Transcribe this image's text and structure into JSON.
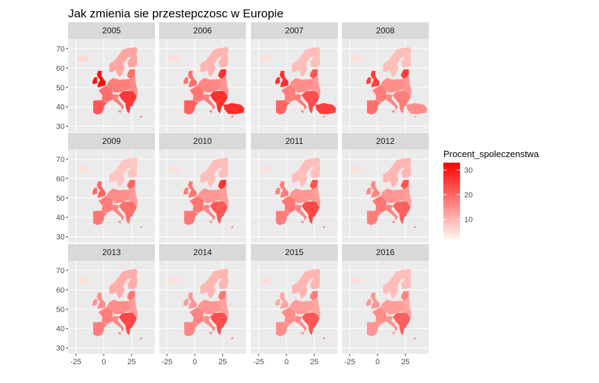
{
  "chart_data": {
    "type": "choropleth-faceted-map",
    "title": "Jak zmienia sie przestepczosc w Europie",
    "facets": [
      "2005",
      "2006",
      "2007",
      "2008",
      "2009",
      "2010",
      "2011",
      "2012",
      "2013",
      "2014",
      "2015",
      "2016"
    ],
    "x_ticks": [
      -25,
      0,
      25
    ],
    "y_ticks": [
      30,
      40,
      50,
      60,
      70
    ],
    "xlim": [
      -32,
      46
    ],
    "ylim": [
      27,
      75
    ],
    "legend": {
      "title": "Procent_spoleczenstwa",
      "ticks": [
        10,
        20,
        30
      ],
      "range": [
        2,
        33
      ],
      "low_color": "#fff5f0",
      "high_color": "#ff0000",
      "position": "right"
    },
    "grid": true,
    "colors": {
      "panel_bg": "#ebebeb",
      "grid": "#ffffff",
      "strip_bg": "#d9d9d9"
    },
    "approx_values": {
      "uk": [
        31,
        19,
        27,
        25,
        20,
        18,
        17,
        16,
        15,
        14,
        12,
        14
      ],
      "iberia": [
        22,
        21,
        20,
        19,
        18,
        18,
        17,
        17,
        17,
        16,
        15,
        14
      ],
      "france": [
        19,
        18,
        17,
        17,
        17,
        18,
        18,
        18,
        17,
        16,
        15,
        15
      ],
      "central": [
        17,
        16,
        15,
        15,
        15,
        14,
        14,
        14,
        15,
        14,
        13,
        13
      ],
      "italy": [
        17,
        17,
        17,
        16,
        16,
        16,
        16,
        16,
        16,
        15,
        15,
        14
      ],
      "balkans": [
        26,
        27,
        23,
        17,
        19,
        22,
        24,
        21,
        24,
        23,
        22,
        21
      ],
      "nordic": [
        12,
        10,
        9,
        9,
        8,
        9,
        9,
        10,
        11,
        10,
        10,
        9
      ],
      "baltic": [
        19,
        27,
        22,
        25,
        20,
        27,
        22,
        22,
        18,
        18,
        17,
        16
      ],
      "east": [
        15,
        14,
        14,
        14,
        13,
        13,
        13,
        13,
        13,
        12,
        12,
        12
      ],
      "turkey": [
        0,
        27,
        25,
        15,
        0,
        0,
        0,
        0,
        0,
        0,
        0,
        0
      ],
      "iceland": [
        6,
        5,
        5,
        5,
        5,
        5,
        5,
        5,
        5,
        5,
        5,
        5
      ]
    }
  }
}
